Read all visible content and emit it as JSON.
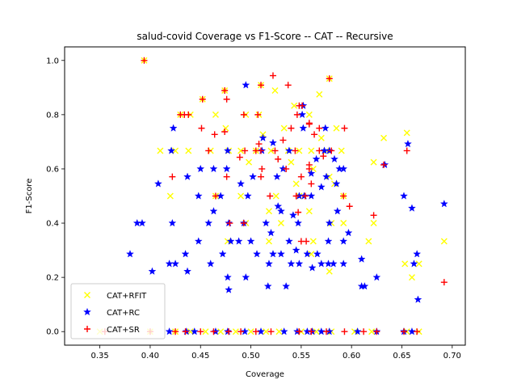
{
  "chart_data": {
    "type": "scatter",
    "title": "salud-covid Coverage vs F1-Score -- CAT -- Recursive",
    "xlabel": "Coverage",
    "ylabel": "F1-Score",
    "xlim": [
      0.315,
      0.713
    ],
    "ylim": [
      -0.05,
      1.05
    ],
    "xticks": [
      0.35,
      0.4,
      0.45,
      0.5,
      0.55,
      0.6,
      0.65,
      0.7
    ],
    "xtick_labels": [
      "0.35",
      "0.40",
      "0.45",
      "0.50",
      "0.55",
      "0.60",
      "0.65",
      "0.70"
    ],
    "yticks": [
      0.0,
      0.2,
      0.4,
      0.6,
      0.8,
      1.0
    ],
    "ytick_labels": [
      "0.0",
      "0.2",
      "0.4",
      "0.6",
      "0.8",
      "1.0"
    ],
    "grid": false,
    "legend": "lower-left",
    "series": [
      {
        "name": "CAT+RFIT",
        "color": "#ffff00",
        "marker": "x",
        "points": [
          [
            0.394,
            1.0
          ],
          [
            0.452,
            0.857
          ],
          [
            0.474,
            0.889
          ],
          [
            0.51,
            0.909
          ],
          [
            0.524,
            0.889
          ],
          [
            0.578,
            0.933
          ],
          [
            0.543,
            0.833
          ],
          [
            0.568,
            0.875
          ],
          [
            0.43,
            0.8
          ],
          [
            0.44,
            0.8
          ],
          [
            0.465,
            0.8
          ],
          [
            0.495,
            0.8
          ],
          [
            0.508,
            0.8
          ],
          [
            0.558,
            0.8
          ],
          [
            0.585,
            0.75
          ],
          [
            0.475,
            0.75
          ],
          [
            0.533,
            0.75
          ],
          [
            0.57,
            0.714
          ],
          [
            0.632,
            0.714
          ],
          [
            0.655,
            0.733
          ],
          [
            0.41,
            0.667
          ],
          [
            0.425,
            0.667
          ],
          [
            0.438,
            0.667
          ],
          [
            0.46,
            0.667
          ],
          [
            0.478,
            0.667
          ],
          [
            0.49,
            0.667
          ],
          [
            0.505,
            0.667
          ],
          [
            0.52,
            0.667
          ],
          [
            0.537,
            0.667
          ],
          [
            0.548,
            0.667
          ],
          [
            0.56,
            0.667
          ],
          [
            0.575,
            0.667
          ],
          [
            0.59,
            0.667
          ],
          [
            0.512,
            0.727
          ],
          [
            0.622,
            0.625
          ],
          [
            0.54,
            0.625
          ],
          [
            0.498,
            0.625
          ],
          [
            0.562,
            0.6
          ],
          [
            0.578,
            0.571
          ],
          [
            0.583,
            0.545
          ],
          [
            0.545,
            0.545
          ],
          [
            0.42,
            0.5
          ],
          [
            0.465,
            0.5
          ],
          [
            0.49,
            0.5
          ],
          [
            0.525,
            0.5
          ],
          [
            0.548,
            0.5
          ],
          [
            0.592,
            0.5
          ],
          [
            0.518,
            0.444
          ],
          [
            0.558,
            0.444
          ],
          [
            0.495,
            0.4
          ],
          [
            0.53,
            0.4
          ],
          [
            0.58,
            0.4
          ],
          [
            0.592,
            0.4
          ],
          [
            0.622,
            0.4
          ],
          [
            0.477,
            0.333
          ],
          [
            0.518,
            0.333
          ],
          [
            0.562,
            0.333
          ],
          [
            0.617,
            0.333
          ],
          [
            0.692,
            0.333
          ],
          [
            0.56,
            0.286
          ],
          [
            0.653,
            0.25
          ],
          [
            0.667,
            0.25
          ],
          [
            0.66,
            0.2
          ],
          [
            0.578,
            0.222
          ],
          [
            0.35,
            0.0
          ],
          [
            0.4,
            0.0
          ],
          [
            0.425,
            0.0
          ],
          [
            0.44,
            0.0
          ],
          [
            0.455,
            0.0
          ],
          [
            0.47,
            0.0
          ],
          [
            0.485,
            0.0
          ],
          [
            0.5,
            0.0
          ],
          [
            0.515,
            0.0
          ],
          [
            0.528,
            0.0
          ],
          [
            0.55,
            0.0
          ],
          [
            0.565,
            0.0
          ],
          [
            0.58,
            0.0
          ],
          [
            0.603,
            0.0
          ],
          [
            0.62,
            0.0
          ],
          [
            0.655,
            0.0
          ],
          [
            0.667,
            0.0
          ]
        ]
      },
      {
        "name": "CAT+RC",
        "color": "#0000ff",
        "marker": "*",
        "points": [
          [
            0.495,
            0.909
          ],
          [
            0.552,
            0.833
          ],
          [
            0.578,
            0.667
          ],
          [
            0.583,
            0.636
          ],
          [
            0.588,
            0.6
          ],
          [
            0.592,
            0.6
          ],
          [
            0.575,
            0.571
          ],
          [
            0.585,
            0.545
          ],
          [
            0.57,
            0.533
          ],
          [
            0.56,
            0.5
          ],
          [
            0.548,
            0.5
          ],
          [
            0.553,
            0.5
          ],
          [
            0.527,
            0.462
          ],
          [
            0.53,
            0.444
          ],
          [
            0.542,
            0.429
          ],
          [
            0.547,
            0.4
          ],
          [
            0.578,
            0.4
          ],
          [
            0.597,
            0.364
          ],
          [
            0.592,
            0.333
          ],
          [
            0.577,
            0.333
          ],
          [
            0.545,
            0.3
          ],
          [
            0.538,
            0.333
          ],
          [
            0.52,
            0.364
          ],
          [
            0.515,
            0.4
          ],
          [
            0.5,
            0.333
          ],
          [
            0.488,
            0.333
          ],
          [
            0.48,
            0.333
          ],
          [
            0.472,
            0.286
          ],
          [
            0.46,
            0.25
          ],
          [
            0.448,
            0.333
          ],
          [
            0.435,
            0.286
          ],
          [
            0.425,
            0.25
          ],
          [
            0.419,
            0.25
          ],
          [
            0.402,
            0.222
          ],
          [
            0.38,
            0.286
          ],
          [
            0.387,
            0.4
          ],
          [
            0.392,
            0.4
          ],
          [
            0.422,
            0.4
          ],
          [
            0.458,
            0.4
          ],
          [
            0.478,
            0.4
          ],
          [
            0.493,
            0.4
          ],
          [
            0.437,
            0.222
          ],
          [
            0.477,
            0.2
          ],
          [
            0.478,
            0.154
          ],
          [
            0.495,
            0.2
          ],
          [
            0.506,
            0.286
          ],
          [
            0.518,
            0.25
          ],
          [
            0.522,
            0.286
          ],
          [
            0.53,
            0.286
          ],
          [
            0.54,
            0.25
          ],
          [
            0.548,
            0.25
          ],
          [
            0.556,
            0.286
          ],
          [
            0.561,
            0.235
          ],
          [
            0.566,
            0.286
          ],
          [
            0.57,
            0.25
          ],
          [
            0.577,
            0.25
          ],
          [
            0.582,
            0.25
          ],
          [
            0.592,
            0.25
          ],
          [
            0.61,
            0.167
          ],
          [
            0.613,
            0.167
          ],
          [
            0.625,
            0.2
          ],
          [
            0.61,
            0.267
          ],
          [
            0.662,
            0.25
          ],
          [
            0.665,
            0.286
          ],
          [
            0.666,
            0.118
          ],
          [
            0.692,
            0.471
          ],
          [
            0.66,
            0.455
          ],
          [
            0.652,
            0.5
          ],
          [
            0.656,
            0.692
          ],
          [
            0.633,
            0.615
          ],
          [
            0.535,
            0.167
          ],
          [
            0.517,
            0.167
          ],
          [
            0.423,
            0.75
          ],
          [
            0.45,
            0.6
          ],
          [
            0.463,
            0.444
          ],
          [
            0.448,
            0.5
          ],
          [
            0.437,
            0.571
          ],
          [
            0.408,
            0.545
          ],
          [
            0.421,
            0.667
          ],
          [
            0.476,
            0.6
          ],
          [
            0.477,
            0.667
          ],
          [
            0.49,
            0.545
          ],
          [
            0.497,
            0.5
          ],
          [
            0.502,
            0.571
          ],
          [
            0.511,
            0.667
          ],
          [
            0.512,
            0.714
          ],
          [
            0.522,
            0.696
          ],
          [
            0.526,
            0.571
          ],
          [
            0.532,
            0.6
          ],
          [
            0.538,
            0.667
          ],
          [
            0.552,
            0.75
          ],
          [
            0.551,
            0.8
          ],
          [
            0.56,
            0.583
          ],
          [
            0.565,
            0.636
          ],
          [
            0.573,
            0.667
          ],
          [
            0.574,
            0.75
          ],
          [
            0.586,
            0.444
          ],
          [
            0.463,
            0.6
          ],
          [
            0.47,
            0.5
          ],
          [
            0.419,
            0.0
          ],
          [
            0.436,
            0.0
          ],
          [
            0.444,
            0.0
          ],
          [
            0.465,
            0.0
          ],
          [
            0.477,
            0.0
          ],
          [
            0.494,
            0.0
          ],
          [
            0.51,
            0.0
          ],
          [
            0.533,
            0.0
          ],
          [
            0.546,
            0.0
          ],
          [
            0.556,
            0.0
          ],
          [
            0.561,
            0.0
          ],
          [
            0.57,
            0.0
          ],
          [
            0.578,
            0.0
          ],
          [
            0.606,
            0.0
          ],
          [
            0.625,
            0.0
          ],
          [
            0.652,
            0.0
          ],
          [
            0.66,
            0.0
          ]
        ]
      },
      {
        "name": "CAT+SR",
        "color": "#ff0000",
        "marker": "+",
        "points": [
          [
            0.394,
            1.0
          ],
          [
            0.522,
            0.944
          ],
          [
            0.537,
            0.909
          ],
          [
            0.51,
            0.909
          ],
          [
            0.578,
            0.933
          ],
          [
            0.474,
            0.889
          ],
          [
            0.476,
            0.857
          ],
          [
            0.452,
            0.857
          ],
          [
            0.551,
            0.833
          ],
          [
            0.548,
            0.833
          ],
          [
            0.546,
            0.8
          ],
          [
            0.43,
            0.8
          ],
          [
            0.434,
            0.8
          ],
          [
            0.438,
            0.8
          ],
          [
            0.493,
            0.8
          ],
          [
            0.507,
            0.8
          ],
          [
            0.558,
            0.769
          ],
          [
            0.558,
            0.765
          ],
          [
            0.54,
            0.75
          ],
          [
            0.568,
            0.75
          ],
          [
            0.593,
            0.75
          ],
          [
            0.451,
            0.75
          ],
          [
            0.474,
            0.737
          ],
          [
            0.464,
            0.727
          ],
          [
            0.563,
            0.727
          ],
          [
            0.532,
            0.706
          ],
          [
            0.508,
            0.692
          ],
          [
            0.568,
            0.667
          ],
          [
            0.58,
            0.667
          ],
          [
            0.572,
            0.647
          ],
          [
            0.505,
            0.667
          ],
          [
            0.51,
            0.667
          ],
          [
            0.458,
            0.667
          ],
          [
            0.494,
            0.667
          ],
          [
            0.524,
            0.667
          ],
          [
            0.544,
            0.667
          ],
          [
            0.489,
            0.643
          ],
          [
            0.527,
            0.636
          ],
          [
            0.558,
            0.615
          ],
          [
            0.558,
            0.6
          ],
          [
            0.511,
            0.6
          ],
          [
            0.476,
            0.571
          ],
          [
            0.51,
            0.571
          ],
          [
            0.422,
            0.571
          ],
          [
            0.535,
            0.6
          ],
          [
            0.55,
            0.571
          ],
          [
            0.56,
            0.545
          ],
          [
            0.554,
            0.5
          ],
          [
            0.545,
            0.5
          ],
          [
            0.519,
            0.5
          ],
          [
            0.465,
            0.5
          ],
          [
            0.592,
            0.5
          ],
          [
            0.598,
            0.462
          ],
          [
            0.547,
            0.44
          ],
          [
            0.622,
            0.429
          ],
          [
            0.479,
            0.4
          ],
          [
            0.493,
            0.4
          ],
          [
            0.55,
            0.333
          ],
          [
            0.555,
            0.333
          ],
          [
            0.632,
            0.615
          ],
          [
            0.655,
            0.667
          ],
          [
            0.692,
            0.182
          ],
          [
            0.355,
            0.0
          ],
          [
            0.4,
            0.0
          ],
          [
            0.425,
            0.0
          ],
          [
            0.435,
            0.0
          ],
          [
            0.45,
            0.0
          ],
          [
            0.463,
            0.0
          ],
          [
            0.478,
            0.0
          ],
          [
            0.49,
            0.0
          ],
          [
            0.505,
            0.0
          ],
          [
            0.52,
            0.0
          ],
          [
            0.548,
            0.0
          ],
          [
            0.56,
            0.0
          ],
          [
            0.575,
            0.0
          ],
          [
            0.593,
            0.0
          ],
          [
            0.612,
            0.0
          ],
          [
            0.625,
            0.0
          ],
          [
            0.652,
            0.0
          ],
          [
            0.665,
            0.0
          ]
        ]
      }
    ]
  }
}
